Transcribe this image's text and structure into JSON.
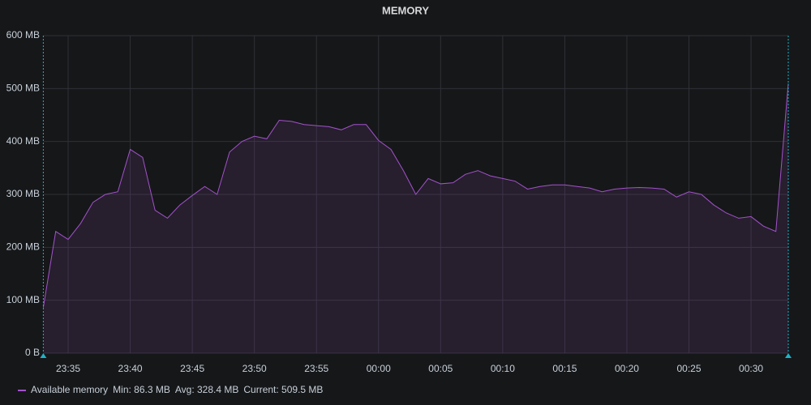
{
  "chart_data": {
    "type": "line",
    "title": "MEMORY",
    "x": [
      "23:33",
      "23:34",
      "23:35",
      "23:36",
      "23:37",
      "23:38",
      "23:39",
      "23:40",
      "23:41",
      "23:42",
      "23:43",
      "23:44",
      "23:45",
      "23:46",
      "23:47",
      "23:48",
      "23:49",
      "23:50",
      "23:51",
      "23:52",
      "23:53",
      "23:54",
      "23:55",
      "23:56",
      "23:57",
      "23:58",
      "23:59",
      "00:00",
      "00:01",
      "00:02",
      "00:03",
      "00:04",
      "00:05",
      "00:06",
      "00:07",
      "00:08",
      "00:09",
      "00:10",
      "00:11",
      "00:12",
      "00:13",
      "00:14",
      "00:15",
      "00:16",
      "00:17",
      "00:18",
      "00:19",
      "00:20",
      "00:21",
      "00:22",
      "00:23",
      "00:24",
      "00:25",
      "00:26",
      "00:27",
      "00:28",
      "00:29",
      "00:30",
      "00:31",
      "00:32",
      "00:33"
    ],
    "series": [
      {
        "name": "Available memory",
        "color": "#a352cc",
        "values": [
          86.3,
          230,
          215,
          245,
          285,
          300,
          305,
          385,
          370,
          270,
          255,
          280,
          298,
          315,
          300,
          380,
          400,
          410,
          405,
          440,
          438,
          432,
          430,
          428,
          422,
          432,
          432,
          402,
          385,
          345,
          300,
          330,
          320,
          322,
          338,
          345,
          335,
          330,
          325,
          310,
          315,
          318,
          318,
          315,
          312,
          305,
          310,
          312,
          313,
          312,
          310,
          295,
          305,
          300,
          280,
          265,
          255,
          258,
          240,
          230,
          509.5
        ]
      }
    ],
    "legend_stats": [
      {
        "value": 86.3,
        "label": "Min: 86.3 MB"
      },
      {
        "value": 328.4,
        "label": "Avg: 328.4 MB"
      },
      {
        "value": 509.5,
        "label": "Current: 509.5 MB"
      }
    ],
    "ylim": [
      0,
      600
    ],
    "yticks": [
      {
        "value": 0,
        "label": "0 B"
      },
      {
        "value": 100,
        "label": "100 MB"
      },
      {
        "value": 200,
        "label": "200 MB"
      },
      {
        "value": 300,
        "label": "300 MB"
      },
      {
        "value": 400,
        "label": "400 MB"
      },
      {
        "value": 500,
        "label": "500 MB"
      },
      {
        "value": 600,
        "label": "600 MB"
      }
    ],
    "xticks": [
      "23:35",
      "23:40",
      "23:45",
      "23:50",
      "23:55",
      "00:00",
      "00:05",
      "00:10",
      "00:15",
      "00:20",
      "00:25",
      "00:30"
    ],
    "grid": true
  }
}
